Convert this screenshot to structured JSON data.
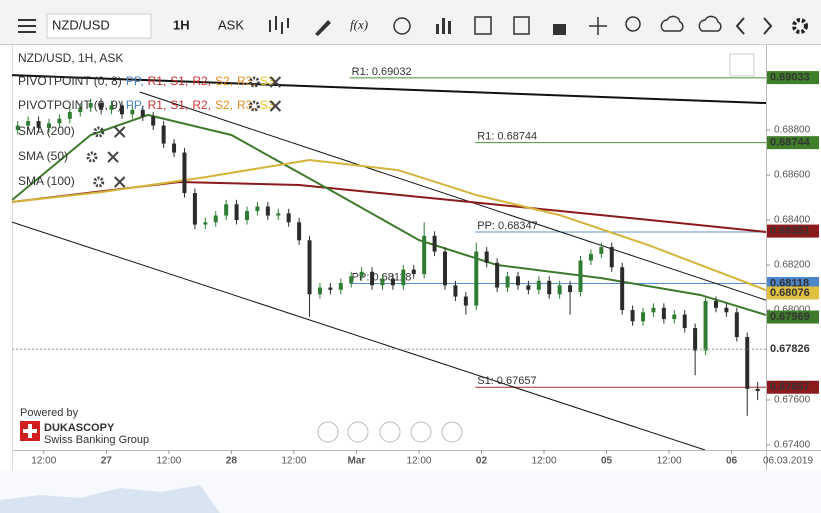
{
  "toolbar": {
    "symbol": "NZD/USD",
    "period": "1H",
    "side": "ASK",
    "fx": "f(x)"
  },
  "chart_data": {
    "type": "candlestick",
    "title": "NZD/USD, 1H, ASK",
    "xlim": [
      5.9,
      150.6
    ],
    "ylim": [
      0.67378,
      0.69178
    ],
    "xticks": [
      {
        "value": 12,
        "label": "12:00"
      },
      {
        "value": 24,
        "label": "27"
      },
      {
        "value": 36,
        "label": "12:00"
      },
      {
        "value": 48,
        "label": "28"
      },
      {
        "value": 60,
        "label": "12:00"
      },
      {
        "value": 72,
        "label": "Mar"
      },
      {
        "value": 84,
        "label": "12:00"
      },
      {
        "value": 96,
        "label": "02"
      },
      {
        "value": 108,
        "label": "12:00"
      },
      {
        "value": 120,
        "label": "05"
      },
      {
        "value": 132,
        "label": "12:00"
      },
      {
        "value": 144,
        "label": "06"
      }
    ],
    "date_label": "06.03.2019",
    "yticks": [
      {
        "value": 0.674,
        "label": "0.67400"
      },
      {
        "value": 0.676,
        "label": "0.67600"
      },
      {
        "value": 0.68,
        "label": "0.68000"
      },
      {
        "value": 0.682,
        "label": "0.68200"
      },
      {
        "value": 0.684,
        "label": "0.68400"
      },
      {
        "value": 0.686,
        "label": "0.68600"
      },
      {
        "value": 0.688,
        "label": "0.68800"
      }
    ],
    "grid": false,
    "up_color": "#2e7d32",
    "down_color": "#2b2b2b",
    "x": [
      7,
      9,
      11,
      13,
      15,
      17,
      19,
      21,
      23,
      25,
      27,
      29,
      31,
      33,
      35,
      37,
      39,
      41,
      43,
      45,
      47,
      49,
      51,
      53,
      55,
      57,
      59,
      61,
      63,
      65,
      67,
      69,
      71,
      73,
      75,
      77,
      79,
      81,
      83,
      85,
      87,
      89,
      91,
      93,
      95,
      97,
      99,
      101,
      103,
      105,
      107,
      109,
      111,
      113,
      115,
      117,
      119,
      121,
      123,
      125,
      127,
      129,
      131,
      133,
      135,
      137,
      139,
      141,
      143,
      145,
      147,
      149
    ],
    "candles": [
      [
        0.688,
        0.6884,
        0.6878,
        0.6882
      ],
      [
        0.6882,
        0.6886,
        0.688,
        0.6884
      ],
      [
        0.6884,
        0.6886,
        0.6879,
        0.6881
      ],
      [
        0.6881,
        0.6885,
        0.6879,
        0.6883
      ],
      [
        0.6883,
        0.6887,
        0.6881,
        0.6885
      ],
      [
        0.6885,
        0.689,
        0.6883,
        0.6888
      ],
      [
        0.6888,
        0.6892,
        0.6886,
        0.689
      ],
      [
        0.689,
        0.6894,
        0.6888,
        0.6892
      ],
      [
        0.6892,
        0.6894,
        0.6887,
        0.6889
      ],
      [
        0.6889,
        0.6893,
        0.6887,
        0.6891
      ],
      [
        0.6891,
        0.6893,
        0.6885,
        0.6887
      ],
      [
        0.6887,
        0.6891,
        0.6885,
        0.6889
      ],
      [
        0.6889,
        0.6891,
        0.6884,
        0.6886
      ],
      [
        0.6886,
        0.6888,
        0.688,
        0.6882
      ],
      [
        0.6882,
        0.6884,
        0.6872,
        0.6874
      ],
      [
        0.6874,
        0.6876,
        0.6868,
        0.687
      ],
      [
        0.687,
        0.6872,
        0.685,
        0.6852
      ],
      [
        0.6852,
        0.6854,
        0.6836,
        0.6838
      ],
      [
        0.6838,
        0.6841,
        0.6836,
        0.6839
      ],
      [
        0.6839,
        0.6844,
        0.6837,
        0.6842
      ],
      [
        0.6842,
        0.6849,
        0.684,
        0.6847
      ],
      [
        0.6847,
        0.6849,
        0.6838,
        0.684
      ],
      [
        0.684,
        0.6846,
        0.6838,
        0.6844
      ],
      [
        0.6844,
        0.6848,
        0.6842,
        0.6846
      ],
      [
        0.6846,
        0.6848,
        0.684,
        0.6842
      ],
      [
        0.6842,
        0.6845,
        0.684,
        0.6843
      ],
      [
        0.6843,
        0.6845,
        0.6837,
        0.6839
      ],
      [
        0.6839,
        0.6841,
        0.6829,
        0.6831
      ],
      [
        0.6831,
        0.6833,
        0.6797,
        0.6807
      ],
      [
        0.6807,
        0.6812,
        0.6805,
        0.681
      ],
      [
        0.681,
        0.6812,
        0.6807,
        0.6809
      ],
      [
        0.6809,
        0.6814,
        0.6807,
        0.6812
      ],
      [
        0.6812,
        0.6817,
        0.681,
        0.6815
      ],
      [
        0.6815,
        0.6819,
        0.6813,
        0.6817
      ],
      [
        0.6817,
        0.6819,
        0.6809,
        0.6811
      ],
      [
        0.6811,
        0.6816,
        0.6809,
        0.6814
      ],
      [
        0.6814,
        0.6816,
        0.6809,
        0.6811
      ],
      [
        0.6811,
        0.682,
        0.6809,
        0.6818
      ],
      [
        0.6818,
        0.682,
        0.6814,
        0.6816
      ],
      [
        0.6816,
        0.6839,
        0.6814,
        0.6833
      ],
      [
        0.6833,
        0.6835,
        0.6824,
        0.6826
      ],
      [
        0.6826,
        0.6828,
        0.6809,
        0.6811
      ],
      [
        0.6811,
        0.6813,
        0.6804,
        0.6806
      ],
      [
        0.6806,
        0.6808,
        0.6798,
        0.6802
      ],
      [
        0.6802,
        0.683,
        0.68,
        0.6826
      ],
      [
        0.6826,
        0.6828,
        0.6819,
        0.6821
      ],
      [
        0.6821,
        0.6823,
        0.6808,
        0.681
      ],
      [
        0.681,
        0.6817,
        0.6808,
        0.6815
      ],
      [
        0.6815,
        0.6817,
        0.6809,
        0.6811
      ],
      [
        0.6811,
        0.6813,
        0.6807,
        0.6809
      ],
      [
        0.6809,
        0.6815,
        0.6807,
        0.6813
      ],
      [
        0.6813,
        0.6815,
        0.6805,
        0.6807
      ],
      [
        0.6807,
        0.6813,
        0.6805,
        0.6811
      ],
      [
        0.6811,
        0.6813,
        0.6798,
        0.6808
      ],
      [
        0.6808,
        0.6824,
        0.6806,
        0.6822
      ],
      [
        0.6822,
        0.6827,
        0.682,
        0.6825
      ],
      [
        0.6825,
        0.683,
        0.6823,
        0.6828
      ],
      [
        0.6828,
        0.683,
        0.6817,
        0.6819
      ],
      [
        0.6819,
        0.6821,
        0.6798,
        0.68
      ],
      [
        0.68,
        0.6802,
        0.6793,
        0.6795
      ],
      [
        0.6795,
        0.6801,
        0.6793,
        0.6799
      ],
      [
        0.6799,
        0.6803,
        0.6797,
        0.6801
      ],
      [
        0.6801,
        0.6803,
        0.6794,
        0.6796
      ],
      [
        0.6796,
        0.68,
        0.6794,
        0.6798
      ],
      [
        0.6798,
        0.68,
        0.679,
        0.6792
      ],
      [
        0.6792,
        0.6794,
        0.6771,
        0.6782
      ],
      [
        0.6782,
        0.6806,
        0.678,
        0.6804
      ],
      [
        0.6804,
        0.6806,
        0.6799,
        0.6801
      ],
      [
        0.6801,
        0.6803,
        0.6797,
        0.6799
      ],
      [
        0.6799,
        0.6801,
        0.6786,
        0.6788
      ],
      [
        0.6788,
        0.679,
        0.6753,
        0.6765
      ],
      [
        0.6765,
        0.6768,
        0.676,
        0.6764
      ]
    ],
    "series": [
      {
        "name": "SMA (200)",
        "color": "#8b1a1a",
        "x": [
          5.9,
          38,
          61,
          90,
          119,
          150.6
        ],
        "values": [
          0.6848,
          0.68569,
          0.68556,
          0.68489,
          0.68422,
          0.68347
        ]
      },
      {
        "name": "SMA (50)",
        "color": "#3d7a2b",
        "x": [
          5.9,
          21,
          32,
          48,
          67,
          84,
          99,
          119,
          138,
          150.6
        ],
        "values": [
          0.68489,
          0.68778,
          0.68867,
          0.68778,
          0.68533,
          0.68311,
          0.682,
          0.68142,
          0.68067,
          0.67978
        ]
      },
      {
        "name": "SMA (100)",
        "color": "#d4b43a",
        "x": [
          5.9,
          23,
          42,
          63,
          80,
          95,
          111,
          128,
          150.6
        ],
        "values": [
          0.6848,
          0.68524,
          0.68587,
          0.68667,
          0.68622,
          0.68511,
          0.68422,
          0.68289,
          0.68089
        ]
      }
    ],
    "trendlines": [
      {
        "x": [
          5.9,
          150.6
        ],
        "values": [
          0.69044,
          0.6892
        ]
      },
      {
        "x": [
          30.4,
          150.6
        ],
        "values": [
          0.68969,
          0.68044
        ]
      },
      {
        "x": [
          5.9,
          138.9
        ],
        "values": [
          0.68391,
          0.67378
        ]
      }
    ],
    "pivot_levels": [
      {
        "label": "R1: 0.69032",
        "value": 0.69032,
        "from": 70.7,
        "color": "#4f8f3f"
      },
      {
        "label": "R1: 0.68744",
        "value": 0.68744,
        "from": 94.8,
        "color": "#4f8f3f"
      },
      {
        "label": "PP: 0.68347",
        "value": 0.68347,
        "from": 94.8,
        "color": "#5b8fc9"
      },
      {
        "label": "PP: 0.68118",
        "value": 0.68118,
        "from": 70.7,
        "color": "#5b8fc9"
      },
      {
        "label": "S1: 0.67657",
        "value": 0.67657,
        "from": 94.8,
        "color": "#a33333"
      }
    ],
    "pivot_indicators": [
      {
        "name": "PIVOTPOINT (0, 8)",
        "items": [
          "PP,",
          "R1,",
          "S1,",
          "R2,",
          "S2,",
          "R3,",
          "S3"
        ]
      },
      {
        "name": "PIVOTPOINT (0, 9)",
        "items": [
          "PP,",
          "R1,",
          "S1,",
          "R2,",
          "S2,",
          "R3,",
          "S3"
        ]
      }
    ],
    "pivot_item_colors": [
      "#4a86c8",
      "#c03030",
      "#c03030",
      "#d03a3a",
      "#e0902a",
      "#e0902a",
      "#e6c21a"
    ],
    "price_tags": [
      {
        "value": 0.69033,
        "bg": "#3f7f2a",
        "fg": "#ffffff"
      },
      {
        "value": 0.68744,
        "bg": "#3f7f2a",
        "fg": "#ffffff"
      },
      {
        "value": 0.68351,
        "bg": "#8b1a1a",
        "fg": "#ffffff"
      },
      {
        "value": 0.68118,
        "bg": "#4a86c8",
        "fg": "#ffffff"
      },
      {
        "value": 0.68076,
        "bg": "#e0c040",
        "fg": "#222222"
      },
      {
        "value": 0.67969,
        "bg": "#3d7a2b",
        "fg": "#ffffff"
      },
      {
        "value": 0.67826,
        "bg": "none",
        "fg": "#3d9a2b",
        "dashed": true
      },
      {
        "value": 0.67657,
        "bg": "#8b1a1a",
        "fg": "#ffffff"
      }
    ],
    "branding": {
      "powered": "Powered by",
      "name": "DUKASCOPY",
      "tagline": "Swiss Banking Group"
    }
  }
}
